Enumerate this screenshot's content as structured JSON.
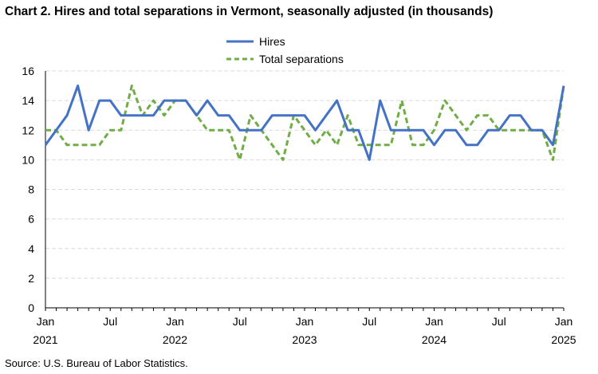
{
  "title": "Chart 2. Hires and total separations in Vermont, seasonally adjusted (in thousands)",
  "source": "Source: U.S. Bureau of Labor Statistics.",
  "colors": {
    "hires": "#4472C4",
    "separations": "#70AD47",
    "grid": "#d9d9d9",
    "axis": "#000000"
  },
  "chart_data": {
    "type": "line",
    "title": "Chart 2. Hires and total separations in Vermont, seasonally adjusted (in thousands)",
    "xlabel": "",
    "ylabel": "",
    "ylim": [
      0,
      16
    ],
    "yticks": [
      0,
      2,
      4,
      6,
      8,
      10,
      12,
      14,
      16
    ],
    "grid": true,
    "legend_position": "top-center",
    "x": [
      "2021-01",
      "2021-02",
      "2021-03",
      "2021-04",
      "2021-05",
      "2021-06",
      "2021-07",
      "2021-08",
      "2021-09",
      "2021-10",
      "2021-11",
      "2021-12",
      "2022-01",
      "2022-02",
      "2022-03",
      "2022-04",
      "2022-05",
      "2022-06",
      "2022-07",
      "2022-08",
      "2022-09",
      "2022-10",
      "2022-11",
      "2022-12",
      "2023-01",
      "2023-02",
      "2023-03",
      "2023-04",
      "2023-05",
      "2023-06",
      "2023-07",
      "2023-08",
      "2023-09",
      "2023-10",
      "2023-11",
      "2023-12",
      "2024-01",
      "2024-02",
      "2024-03",
      "2024-04",
      "2024-05",
      "2024-06",
      "2024-07",
      "2024-08",
      "2024-09",
      "2024-10",
      "2024-11",
      "2024-12",
      "2025-01"
    ],
    "x_tick_labels": [
      {
        "month": "Jan",
        "year": "2021",
        "index": 0
      },
      {
        "month": "Jul",
        "year": "",
        "index": 6
      },
      {
        "month": "Jan",
        "year": "2022",
        "index": 12
      },
      {
        "month": "Jul",
        "year": "",
        "index": 18
      },
      {
        "month": "Jan",
        "year": "2023",
        "index": 24
      },
      {
        "month": "Jul",
        "year": "",
        "index": 30
      },
      {
        "month": "Jan",
        "year": "2024",
        "index": 36
      },
      {
        "month": "Jul",
        "year": "",
        "index": 42
      },
      {
        "month": "Jan",
        "year": "2025",
        "index": 48
      }
    ],
    "series": [
      {
        "name": "Hires",
        "style": "solid",
        "values": [
          11,
          12,
          13,
          15,
          12,
          14,
          14,
          13,
          13,
          13,
          13,
          14,
          14,
          14,
          13,
          14,
          13,
          13,
          12,
          12,
          12,
          13,
          13,
          13,
          13,
          12,
          13,
          14,
          12,
          12,
          10,
          14,
          12,
          12,
          12,
          12,
          11,
          12,
          12,
          11,
          11,
          12,
          12,
          13,
          13,
          12,
          12,
          11,
          15
        ]
      },
      {
        "name": "Total separations",
        "style": "dashed",
        "values": [
          12,
          12,
          11,
          11,
          11,
          11,
          12,
          12,
          15,
          13,
          14,
          13,
          14,
          14,
          13,
          12,
          12,
          12,
          10,
          13,
          12,
          11,
          10,
          13,
          12,
          11,
          12,
          11,
          13,
          11,
          11,
          11,
          11,
          14,
          11,
          11,
          12,
          14,
          13,
          12,
          13,
          13,
          12,
          12,
          12,
          12,
          12,
          10,
          15
        ]
      }
    ]
  }
}
